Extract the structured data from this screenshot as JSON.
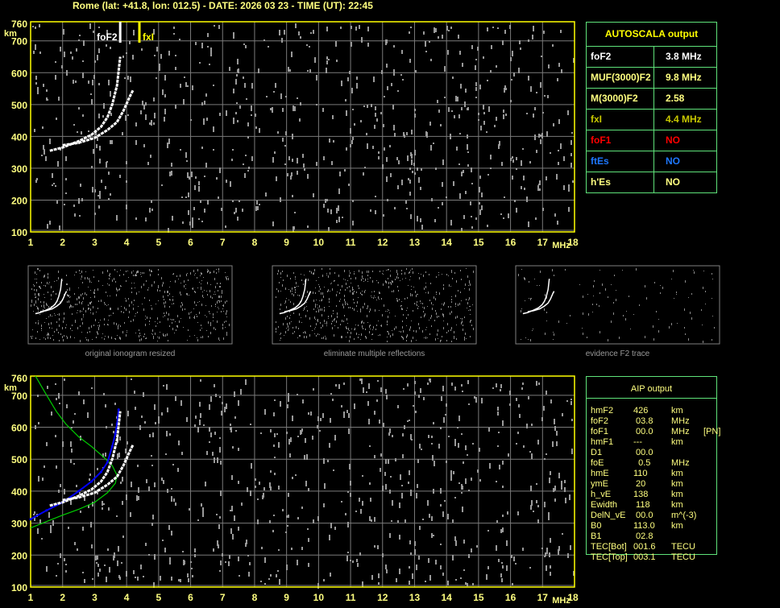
{
  "title": "Rome (lat: +41.8, lon: 012.5) - DATE: 2026 03 23 - TIME (UT): 22:45",
  "colors": {
    "axis": "#ffff00",
    "grid": "#7a7a7a",
    "noise": "#9a9a9a",
    "trace": "#ffffff",
    "profile": "#00d000",
    "fit": "#0000ff",
    "table_border": "#5fe37a"
  },
  "main_plot": {
    "marker_foF2": "foF2",
    "marker_fxI": "fxI"
  },
  "chart_data": [
    {
      "type": "scatter",
      "title": "",
      "xlabel": "MHz",
      "ylabel": "km",
      "xlim": [
        1,
        18
      ],
      "ylim": [
        100,
        760
      ],
      "grid": true,
      "x_ticks": [
        "1",
        "2",
        "3",
        "4",
        "5",
        "6",
        "7",
        "8",
        "9",
        "10",
        "11",
        "12",
        "13",
        "14",
        "15",
        "16",
        "17",
        "18"
      ],
      "y_ticks": [
        "100",
        "200",
        "300",
        "400",
        "500",
        "600",
        "700",
        "760"
      ],
      "markers": [
        {
          "name": "foF2",
          "x": 3.8
        },
        {
          "name": "fxI",
          "x": 4.4
        }
      ],
      "series": [
        {
          "points": [
            [
              1.6,
              355
            ],
            [
              2.0,
              365
            ],
            [
              2.5,
              385
            ],
            [
              2.9,
              405
            ],
            [
              3.2,
              430
            ],
            [
              3.4,
              460
            ],
            [
              3.55,
              500
            ],
            [
              3.7,
              560
            ],
            [
              3.8,
              650
            ]
          ]
        },
        {
          "points": [
            [
              2.0,
              372
            ],
            [
              2.5,
              380
            ],
            [
              3.0,
              395
            ],
            [
              3.4,
              420
            ],
            [
              3.7,
              445
            ],
            [
              3.9,
              480
            ],
            [
              4.1,
              525
            ],
            [
              4.2,
              545
            ]
          ]
        }
      ]
    },
    {
      "type": "line",
      "title": "",
      "xlabel": "MHz",
      "ylabel": "km",
      "xlim": [
        1,
        18
      ],
      "ylim": [
        100,
        760
      ],
      "grid": true,
      "x_ticks": [
        "1",
        "2",
        "3",
        "4",
        "5",
        "6",
        "7",
        "8",
        "9",
        "10",
        "11",
        "12",
        "13",
        "14",
        "15",
        "16",
        "17",
        "18"
      ],
      "y_ticks": [
        "100",
        "200",
        "300",
        "400",
        "500",
        "600",
        "700",
        "760"
      ],
      "series": [
        {
          "color": "#00d000",
          "points": [
            [
              1.0,
              285
            ],
            [
              1.5,
              305
            ],
            [
              2.0,
              325
            ],
            [
              2.5,
              343
            ],
            [
              3.0,
              365
            ],
            [
              3.4,
              395
            ],
            [
              3.65,
              425
            ],
            [
              3.7,
              450
            ],
            [
              3.55,
              480
            ],
            [
              3.3,
              505
            ],
            [
              2.9,
              540
            ],
            [
              2.5,
              570
            ],
            [
              2.1,
              610
            ],
            [
              1.8,
              650
            ],
            [
              1.5,
              700
            ],
            [
              1.15,
              760
            ]
          ]
        },
        {
          "color": "#0000ff",
          "points": [
            [
              1.0,
              312
            ],
            [
              1.5,
              340
            ],
            [
              2.0,
              365
            ],
            [
              2.5,
              400
            ],
            [
              2.9,
              430
            ],
            [
              3.2,
              460
            ],
            [
              3.4,
              490
            ],
            [
              3.55,
              540
            ],
            [
              3.65,
              580
            ],
            [
              3.7,
              610
            ],
            [
              3.75,
              655
            ]
          ]
        },
        {
          "color": "#ffffff",
          "points": [
            [
              1.6,
              355
            ],
            [
              2.0,
              365
            ],
            [
              2.5,
              385
            ],
            [
              2.9,
              405
            ],
            [
              3.2,
              430
            ],
            [
              3.4,
              460
            ],
            [
              3.55,
              500
            ],
            [
              3.7,
              560
            ],
            [
              3.8,
              650
            ]
          ]
        },
        {
          "color": "#ffffff",
          "points": [
            [
              2.0,
              372
            ],
            [
              2.5,
              380
            ],
            [
              3.0,
              395
            ],
            [
              3.4,
              420
            ],
            [
              3.7,
              445
            ],
            [
              3.9,
              480
            ],
            [
              4.1,
              525
            ],
            [
              4.2,
              545
            ]
          ]
        }
      ]
    }
  ],
  "thumbnails": [
    {
      "caption": "original ionogram resized"
    },
    {
      "caption": "eliminate multiple reflections"
    },
    {
      "caption": "evidence F2 trace"
    }
  ],
  "autoscala": {
    "header": "AUTOSCALA output",
    "rows": [
      {
        "label": "foF2",
        "value": "3.8 MHz",
        "color": "#ffffff"
      },
      {
        "label": "MUF(3000)F2",
        "value": "9.8 MHz",
        "color": "#ffff80"
      },
      {
        "label": "M(3000)F2",
        "value": "2.58",
        "color": "#ffff80"
      },
      {
        "label": "fxI",
        "value": "4.4 MHz",
        "color": "#c8c800"
      },
      {
        "label": "foF1",
        "value": "NO",
        "color": "#ff0000"
      },
      {
        "label": "ftEs",
        "value": "NO",
        "color": "#1e78ff"
      },
      {
        "label": "h'Es",
        "value": "NO",
        "color": "#ffff80"
      }
    ]
  },
  "aip": {
    "header": "AIP output",
    "rows": [
      {
        "name": "hmF2",
        "value": "426",
        "unit": "km",
        "extra": ""
      },
      {
        "name": "foF2",
        "value": " 03.8",
        "unit": "MHz",
        "extra": ""
      },
      {
        "name": "foF1",
        "value": " 00.0",
        "unit": "MHz",
        "extra": "[PN]"
      },
      {
        "name": "hmF1",
        "value": "---",
        "unit": "km",
        "extra": ""
      },
      {
        "name": "D1",
        "value": " 00.0",
        "unit": "",
        "extra": ""
      },
      {
        "name": "foE",
        "value": "  0.5",
        "unit": "MHz",
        "extra": ""
      },
      {
        "name": "hmE",
        "value": "110",
        "unit": "km",
        "extra": ""
      },
      {
        "name": "ymE",
        "value": " 20",
        "unit": "km",
        "extra": ""
      },
      {
        "name": "h_vE",
        "value": "138",
        "unit": "km",
        "extra": ""
      },
      {
        "name": "Ewidth",
        "value": " 118",
        "unit": "km",
        "extra": ""
      },
      {
        "name": "DelN_vE",
        "value": " 00.0",
        "unit": "m^(-3)",
        "extra": ""
      },
      {
        "name": "B0",
        "value": "113.0",
        "unit": "km",
        "extra": ""
      },
      {
        "name": "B1",
        "value": " 02.8",
        "unit": "",
        "extra": ""
      },
      {
        "name": "TEC[Bot]",
        "value": "001.6",
        "unit": "TECU",
        "extra": ""
      },
      {
        "name": "TEC[Top]",
        "value": "003.1",
        "unit": "TECU",
        "extra": ""
      }
    ]
  }
}
